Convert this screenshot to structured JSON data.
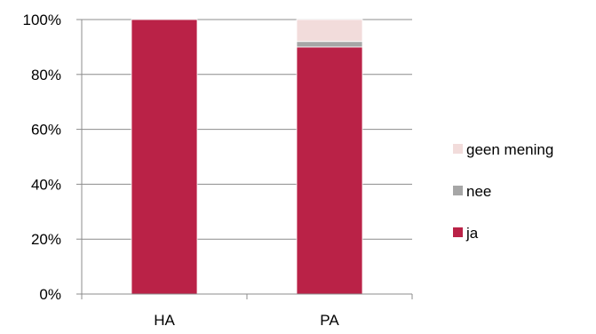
{
  "chart_data": {
    "type": "bar",
    "stacked": true,
    "percent": true,
    "categories": [
      "HA",
      "PA"
    ],
    "series": [
      {
        "name": "ja",
        "values": [
          100,
          90
        ],
        "color": "#BA2247"
      },
      {
        "name": "nee",
        "values": [
          0,
          2
        ],
        "color": "#A6A6A6"
      },
      {
        "name": "geen mening",
        "values": [
          0,
          8
        ],
        "color": "#F2DCDB"
      }
    ],
    "ylim": [
      0,
      100
    ],
    "yticks": [
      "0%",
      "20%",
      "40%",
      "60%",
      "80%",
      "100%"
    ],
    "grid": true,
    "legend_position": "right"
  }
}
